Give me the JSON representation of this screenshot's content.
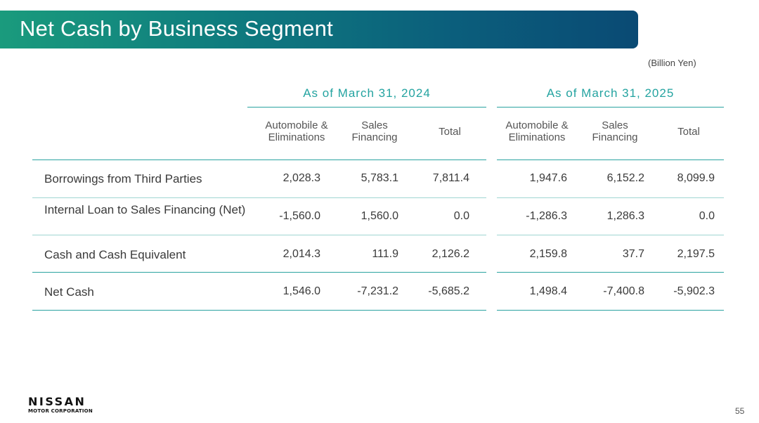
{
  "title": "Net Cash by Business Segment",
  "unit": "(Billion Yen)",
  "periods": [
    {
      "label": "As of March 31, 2024",
      "columns": [
        "Automobile & Eliminations",
        "Sales Financing",
        "Total"
      ]
    },
    {
      "label": "As of March 31, 2025",
      "columns": [
        "Automobile & Eliminations",
        "Sales Financing",
        "Total"
      ]
    }
  ],
  "rows": [
    {
      "label": "Borrowings from Third Parties",
      "values": [
        "2,028.3",
        "5,783.1",
        "7,811.4",
        "1,947.6",
        "6,152.2",
        "8,099.9"
      ]
    },
    {
      "label": "Internal Loan to Sales Financing (Net)",
      "values": [
        "-1,560.0",
        "1,560.0",
        "0.0",
        "-1,286.3",
        "1,286.3",
        "0.0"
      ]
    },
    {
      "label": "Cash and Cash Equivalent",
      "values": [
        "2,014.3",
        "111.9",
        "2,126.2",
        "2,159.8",
        "37.7",
        "2,197.5"
      ]
    },
    {
      "label": "Net Cash",
      "values": [
        "1,546.0",
        "-7,231.2",
        "-5,685.2",
        "1,498.4",
        "-7,400.8",
        "-5,902.3"
      ]
    }
  ],
  "footer": {
    "logo_word": "NISSAN",
    "logo_sub": "MOTOR CORPORATION",
    "page_number": "55"
  }
}
